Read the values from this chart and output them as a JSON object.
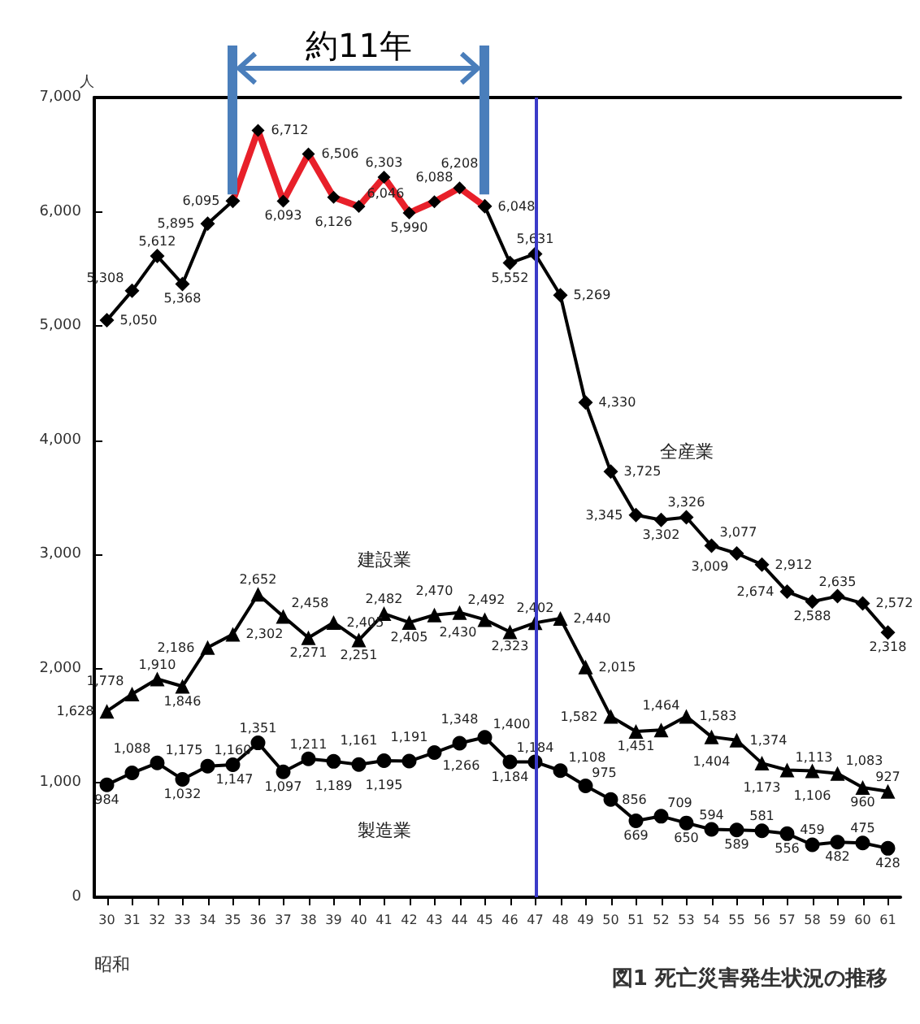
{
  "chart_data": {
    "type": "line",
    "title": "図1 死亡災害発生状況の推移",
    "xlabel": "昭和",
    "ylabel": "人",
    "annotations": [
      "約11年"
    ],
    "categories": [
      "30",
      "31",
      "32",
      "33",
      "34",
      "35",
      "36",
      "37",
      "38",
      "39",
      "40",
      "41",
      "42",
      "43",
      "44",
      "45",
      "46",
      "47",
      "48",
      "49",
      "50",
      "51",
      "52",
      "53",
      "54",
      "55",
      "56",
      "57",
      "58",
      "59",
      "60",
      "61"
    ],
    "series": [
      {
        "name": "全産業",
        "color": "#000000",
        "marker": "diamond",
        "values": [
          5050,
          5308,
          5612,
          5368,
          5895,
          6095,
          null,
          null,
          null,
          null,
          null,
          null,
          null,
          null,
          null,
          6048,
          5552,
          5631,
          5269,
          4330,
          3725,
          3345,
          3302,
          3326,
          3077,
          3009,
          2912,
          2674,
          2588,
          2635,
          2572,
          2318
        ],
        "value_labels": [
          "5,050",
          "5,308",
          "5,612",
          "5,368",
          "5,895",
          "6,095",
          null,
          null,
          null,
          null,
          null,
          null,
          null,
          null,
          null,
          "6,048",
          "5,552",
          "5,631",
          "5,269",
          "4,330",
          "3,725",
          "3,345",
          "3,302",
          "3,326",
          "3,077",
          "3,009",
          "2,912",
          "2,674",
          "2,588",
          "2,635",
          "2,572",
          "2,318"
        ]
      },
      {
        "color": "#e8202a",
        "marker": "diamond",
        "values": [
          null,
          null,
          null,
          null,
          null,
          6095,
          6712,
          6093,
          6506,
          6126,
          6046,
          6303,
          5990,
          6088,
          6208,
          6048,
          null,
          null,
          null,
          null,
          null,
          null,
          null,
          null,
          null,
          null,
          null,
          null,
          null,
          null,
          null,
          null
        ],
        "value_labels": [
          null,
          null,
          null,
          null,
          null,
          null,
          "6,712",
          "6,093",
          "6,506",
          "6,126",
          "6,046",
          "6,303",
          "5,990",
          "6,088",
          "6,208",
          null,
          null,
          null,
          null,
          null,
          null,
          null,
          null,
          null,
          null,
          null,
          null,
          null,
          null,
          null,
          null,
          null
        ]
      },
      {
        "name": "建設業",
        "color": "#000000",
        "marker": "triangle",
        "values": [
          1628,
          1778,
          1910,
          1846,
          2186,
          2302,
          2652,
          2458,
          2271,
          2405,
          2251,
          2482,
          2405,
          2470,
          2492,
          2430,
          2323,
          2402,
          2440,
          2015,
          1582,
          1451,
          1464,
          1583,
          1404,
          1374,
          1173,
          1113,
          1106,
          1083,
          960,
          927
        ],
        "value_labels": [
          "1,628",
          "1,778",
          "1,910",
          "1,846",
          "2,186",
          "2,302",
          "2,652",
          "2,458",
          "2,271",
          "2,405",
          "2,251",
          "2,482",
          "2,405",
          "2,470",
          "2,492",
          "2,430",
          "2,323",
          "2,402",
          "2,440",
          "2,015",
          "1,582",
          "1,451",
          "1,464",
          "1,583",
          "1,404",
          "1,374",
          "1,173",
          "1,113",
          "1,106",
          "1,083",
          "960",
          "927"
        ]
      },
      {
        "name": "製造業",
        "color": "#000000",
        "marker": "circle",
        "values": [
          984,
          1088,
          1175,
          1032,
          1147,
          1160,
          1351,
          1097,
          1211,
          1189,
          1161,
          1195,
          1191,
          1266,
          1348,
          1400,
          1184,
          1184,
          1108,
          975,
          856,
          669,
          709,
          650,
          594,
          589,
          581,
          556,
          459,
          482,
          475,
          428
        ],
        "value_labels": [
          "984",
          "1,088",
          "1,175",
          "1,032",
          "1,147",
          "1,160",
          "1,351",
          "1,097",
          "1,211",
          "1,189",
          "1,161",
          "1,195",
          "1,191",
          "1,266",
          "1,348",
          "1,400",
          "1,184",
          "1,184",
          "1,108",
          "975",
          "856",
          "669",
          "709",
          "650",
          "594",
          "589",
          "581",
          "556",
          "459",
          "482",
          "475",
          "428"
        ]
      }
    ],
    "ylim": [
      0,
      7000
    ],
    "yticks": [
      {
        "value": 0,
        "label": "0"
      },
      {
        "value": 1000,
        "label": "1,000"
      },
      {
        "value": 2000,
        "label": "2,000"
      },
      {
        "value": 3000,
        "label": "3,000"
      },
      {
        "value": 4000,
        "label": "4,000"
      },
      {
        "value": 5000,
        "label": "5,000"
      },
      {
        "value": 6000,
        "label": "6,000"
      },
      {
        "value": 7000,
        "label": "7,000"
      }
    ],
    "ref_lines": [
      {
        "axis": "x",
        "value": "47",
        "color": "#3b3bc8"
      }
    ],
    "grid": false,
    "legend": false,
    "line_style": "solid"
  }
}
